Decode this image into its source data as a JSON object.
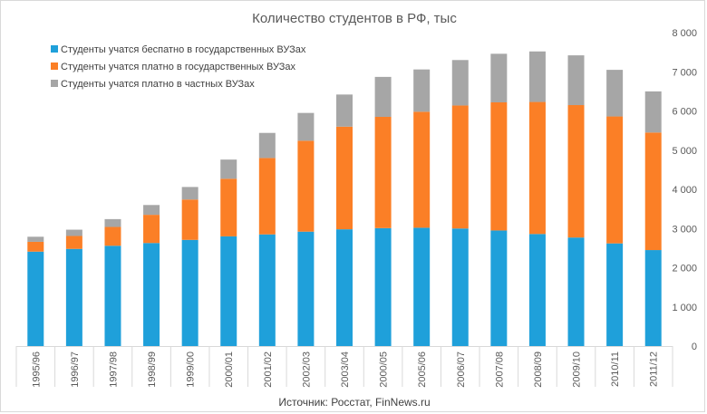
{
  "chart_data": {
    "type": "bar",
    "stacked": true,
    "title": "Количество студентов в РФ, тыс",
    "source": "Источник: Росстат, FinNews.ru",
    "xlabel": "",
    "ylabel": "",
    "ylim": [
      0,
      8000
    ],
    "yticks": [
      0,
      1000,
      2000,
      3000,
      4000,
      5000,
      6000,
      7000,
      8000
    ],
    "ytick_labels": [
      "0",
      "1 000",
      "2 000",
      "3 000",
      "4 000",
      "5 000",
      "6 000",
      "7 000",
      "8 000"
    ],
    "y_axis_side": "right",
    "grid": false,
    "legend_position": "top-left",
    "categories": [
      "1995/96",
      "1996/97",
      "1997/98",
      "1998/99",
      "1999/00",
      "2000/01",
      "2001/02",
      "2002/03",
      "2003/04",
      "2000/05",
      "2005/06",
      "2006/07",
      "2007/08",
      "2008/09",
      "2009/10",
      "2010/11",
      "2011/12"
    ],
    "series": [
      {
        "name": "Студенты учатся беспатно в государственных ВУЗах",
        "color": "#1fa0da",
        "values": [
          2410,
          2480,
          2560,
          2630,
          2710,
          2800,
          2850,
          2920,
          2980,
          3010,
          3020,
          3000,
          2950,
          2860,
          2770,
          2620,
          2450
        ]
      },
      {
        "name": "Студенты учатся платно в государственных ВУЗах",
        "color": "#fb7f26",
        "values": [
          250,
          330,
          480,
          720,
          1030,
          1470,
          1950,
          2320,
          2620,
          2840,
          2960,
          3140,
          3270,
          3370,
          3380,
          3240,
          3000
        ]
      },
      {
        "name": "Студенты учатся платно в частных ВУЗах",
        "color": "#a6a6a6",
        "values": [
          130,
          160,
          200,
          250,
          320,
          490,
          640,
          710,
          820,
          1020,
          1080,
          1160,
          1240,
          1290,
          1270,
          1190,
          1050
        ]
      }
    ]
  }
}
